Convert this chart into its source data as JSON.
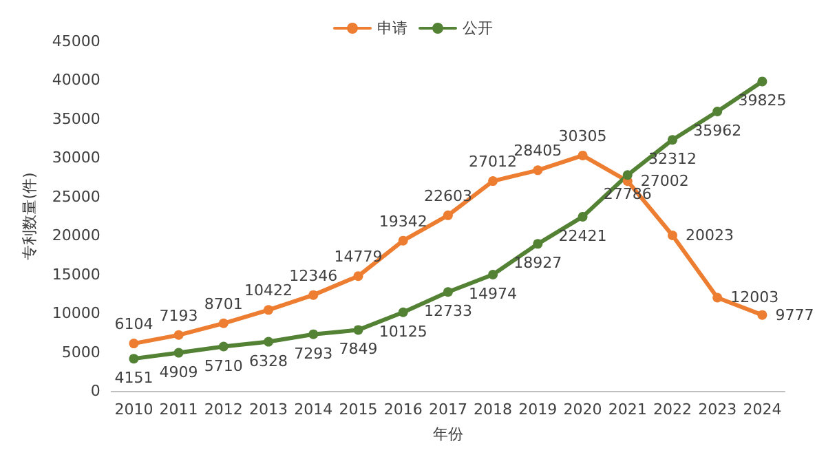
{
  "chart_data": {
    "type": "line",
    "xlabel": "年份",
    "ylabel": "专利数量(件)",
    "categories": [
      "2010",
      "2011",
      "2012",
      "2013",
      "2014",
      "2015",
      "2016",
      "2017",
      "2018",
      "2019",
      "2020",
      "2021",
      "2022",
      "2023",
      "2024"
    ],
    "series": [
      {
        "name": "申请",
        "color": "#ed7d31",
        "values": [
          6104,
          7193,
          8701,
          10422,
          12346,
          14779,
          19342,
          22603,
          27012,
          28405,
          30305,
          27002,
          20023,
          12003,
          9777
        ]
      },
      {
        "name": "公开",
        "color": "#548235",
        "values": [
          4151,
          4909,
          5710,
          6328,
          7293,
          7849,
          10125,
          12733,
          14974,
          18927,
          22421,
          27786,
          32312,
          35962,
          39825
        ]
      }
    ],
    "ylim": [
      0,
      45000
    ],
    "yticks": [
      0,
      5000,
      10000,
      15000,
      20000,
      25000,
      30000,
      35000,
      40000,
      45000
    ],
    "grid": false,
    "legend": "top",
    "marker": "circle",
    "line_style": "solid",
    "data_labels": true
  }
}
